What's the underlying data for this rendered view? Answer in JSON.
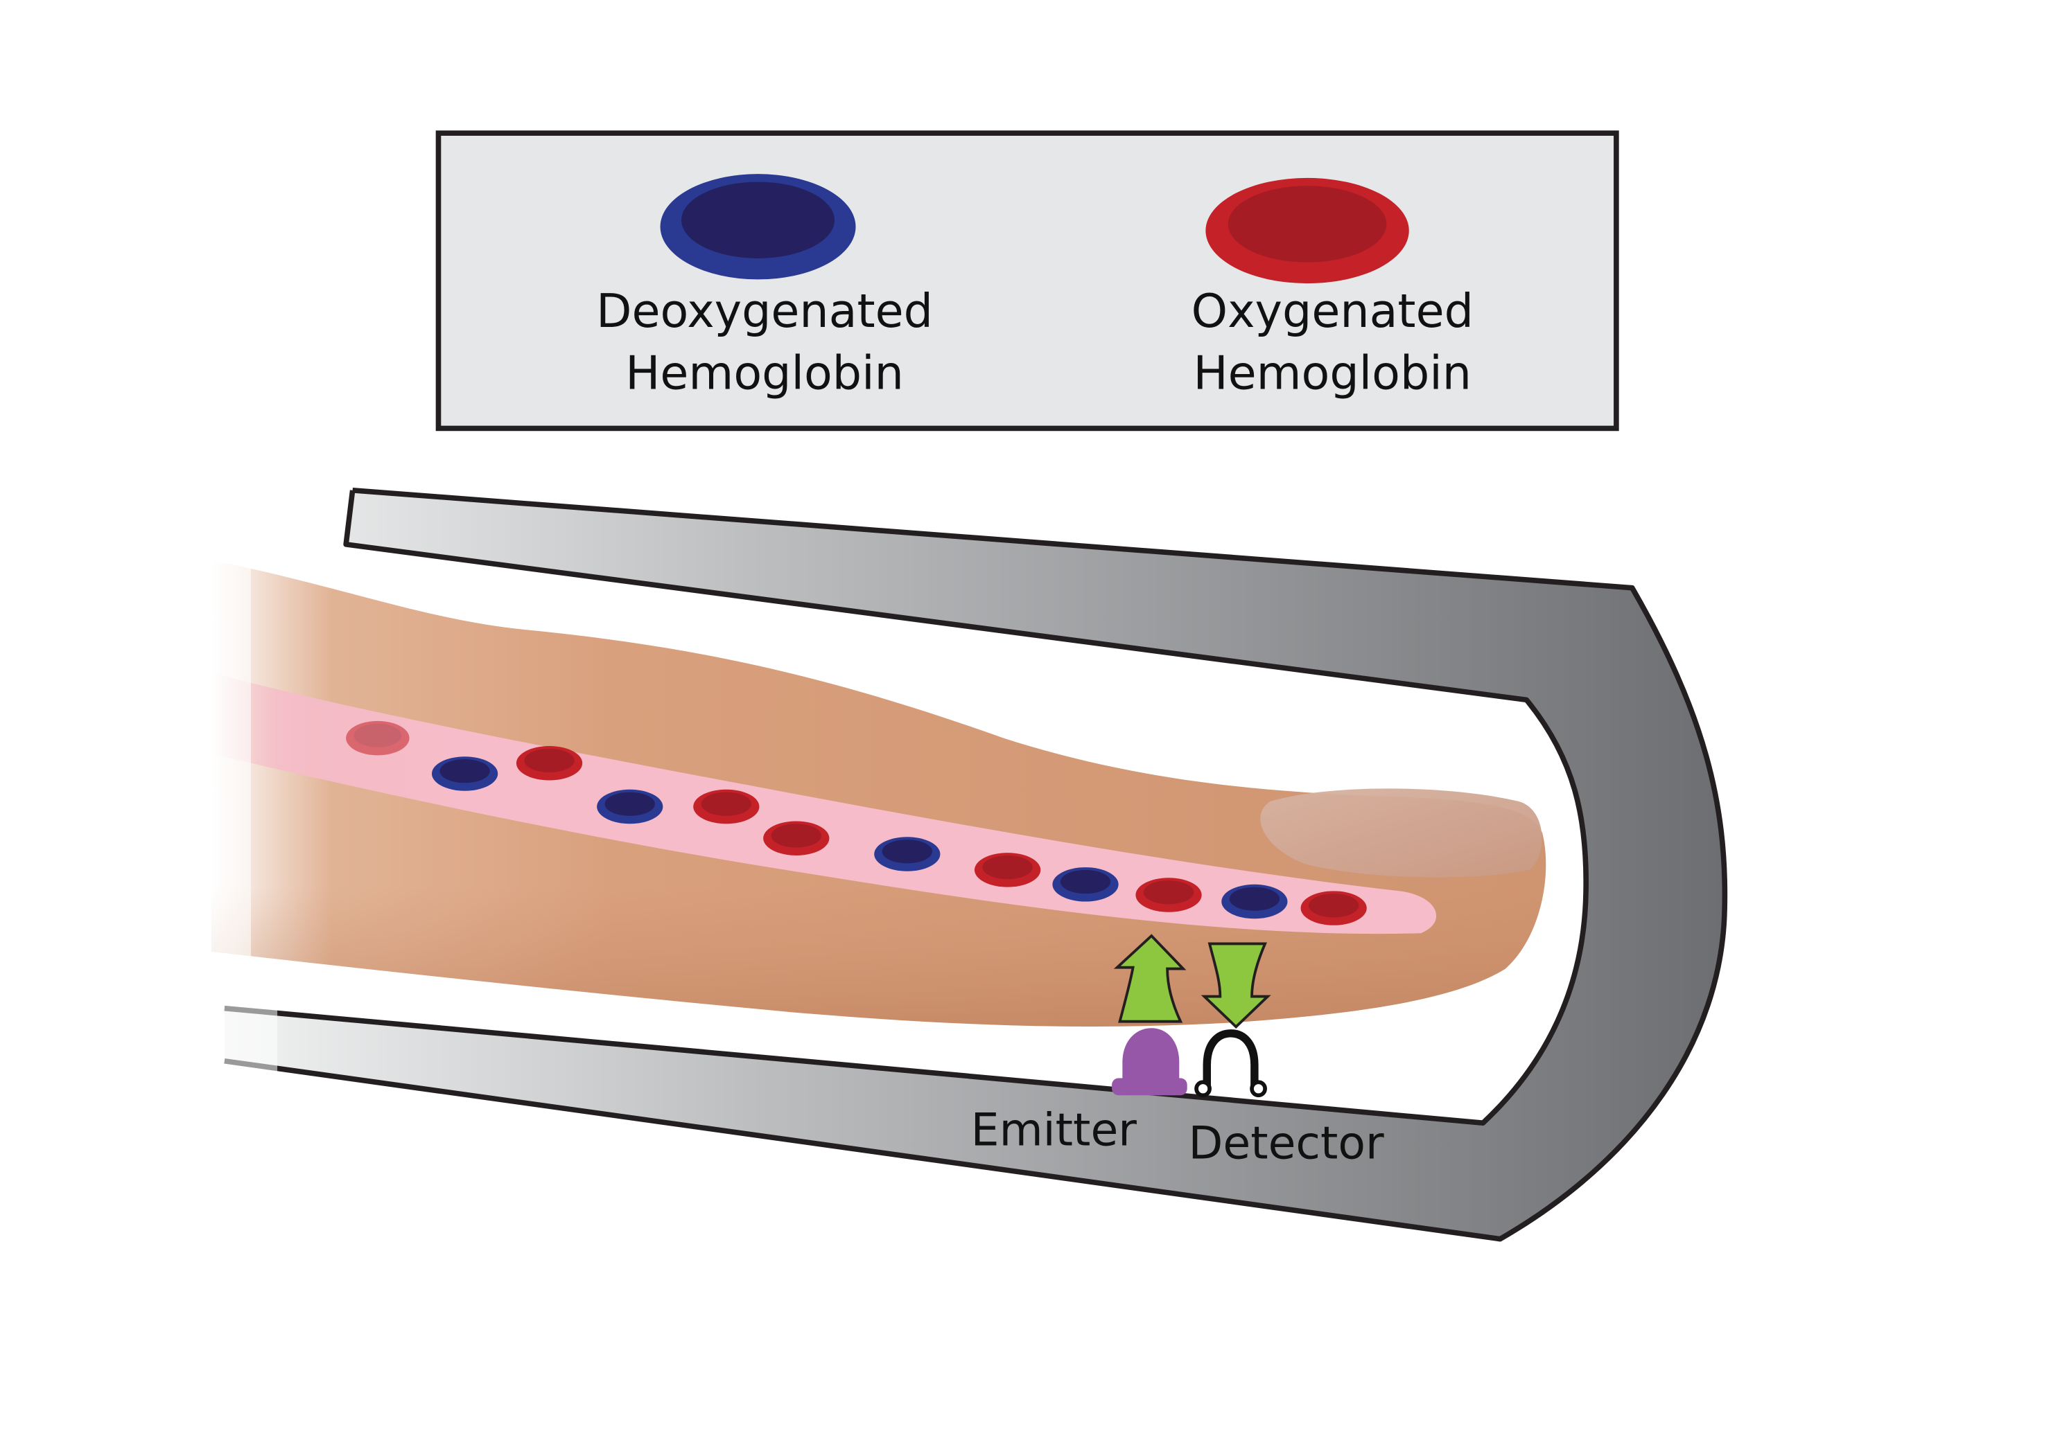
{
  "legend": {
    "items": [
      {
        "line1": "Deoxygenated",
        "line2": "Hemoglobin",
        "outer_color": "#2A3A93",
        "inner_color": "#252060"
      },
      {
        "line1": "Oxygenated",
        "line2": "Hemoglobin",
        "outer_color": "#C42128",
        "inner_color": "#A51C24"
      }
    ],
    "background_color": "#E6E7E8",
    "border_color": "#231F20"
  },
  "device": {
    "emitter_label": "Emitter",
    "detector_label": "Detector",
    "emitter_color": "#9657A8",
    "arrow_color": "#8DC63F",
    "housing_dark_color": "#6D6E71",
    "housing_light_color": "#E6E7E8"
  },
  "finger": {
    "skin_color": "#D9A07D",
    "vessel_color": "#F6BCC9",
    "cells_sequence": [
      "oxy-faded",
      "deoxy",
      "oxy",
      "deoxy",
      "oxy",
      "oxy",
      "deoxy",
      "oxy",
      "deoxy",
      "oxy",
      "deoxy",
      "oxy"
    ]
  }
}
